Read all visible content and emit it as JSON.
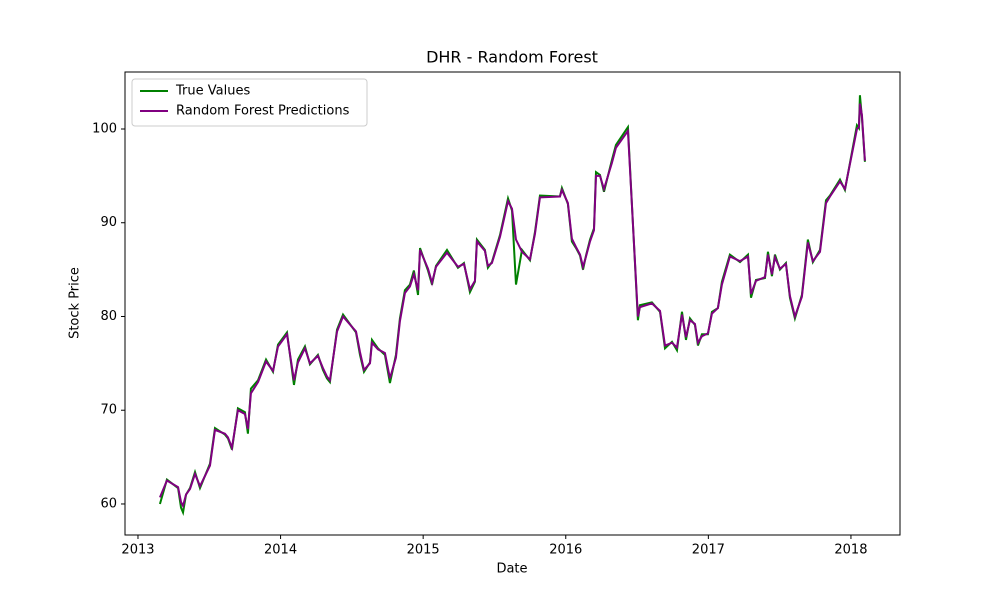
{
  "chart_data": {
    "type": "line",
    "title": "DHR - Random Forest",
    "x_label": "Date",
    "y_label": "Stock Price",
    "x": [
      2013.154,
      2013.203,
      2013.281,
      2013.302,
      2013.316,
      2013.337,
      2013.365,
      2013.4,
      2013.435,
      2013.505,
      2013.54,
      2013.61,
      2013.631,
      2013.659,
      2013.701,
      2013.75,
      2013.771,
      2013.792,
      2013.842,
      2013.898,
      2013.947,
      2013.982,
      2014.045,
      2014.094,
      2014.122,
      2014.171,
      2014.206,
      2014.262,
      2014.297,
      2014.325,
      2014.346,
      2014.396,
      2014.438,
      2014.529,
      2014.557,
      2014.585,
      2014.627,
      2014.641,
      2014.683,
      2014.732,
      2014.767,
      2014.809,
      2014.837,
      2014.872,
      2014.907,
      2014.935,
      2014.964,
      2014.978,
      2015.034,
      2015.062,
      2015.09,
      2015.167,
      2015.244,
      2015.286,
      2015.328,
      2015.363,
      2015.377,
      2015.433,
      2015.454,
      2015.482,
      2015.539,
      2015.595,
      2015.623,
      2015.651,
      2015.693,
      2015.749,
      2015.784,
      2015.819,
      2015.959,
      2015.973,
      2016.015,
      2016.043,
      2016.072,
      2016.1,
      2016.121,
      2016.142,
      2016.17,
      2016.198,
      2016.212,
      2016.24,
      2016.268,
      2016.324,
      2016.352,
      2016.436,
      2016.506,
      2016.52,
      2016.604,
      2016.661,
      2016.696,
      2016.745,
      2016.78,
      2016.815,
      2016.843,
      2016.871,
      2016.906,
      2016.927,
      2016.955,
      2016.997,
      2017.025,
      2017.067,
      2017.095,
      2017.151,
      2017.222,
      2017.278,
      2017.299,
      2017.334,
      2017.397,
      2017.418,
      2017.446,
      2017.467,
      2017.502,
      2017.544,
      2017.572,
      2017.607,
      2017.656,
      2017.698,
      2017.733,
      2017.783,
      2017.825,
      2017.853,
      2017.923,
      2017.958,
      2018.042,
      2018.056,
      2018.063,
      2018.077,
      2018.098
    ],
    "series": [
      {
        "name": "True Values",
        "color": "#008000",
        "values": [
          60.0,
          62.6,
          61.7,
          59.6,
          59.1,
          61.0,
          61.7,
          63.4,
          61.7,
          64.3,
          68.1,
          67.4,
          67.0,
          65.8,
          70.2,
          69.8,
          67.5,
          72.3,
          73.2,
          75.4,
          74.1,
          77.0,
          78.3,
          72.7,
          75.4,
          76.8,
          74.9,
          75.9,
          74.3,
          73.4,
          73.0,
          78.6,
          80.2,
          78.3,
          75.9,
          74.1,
          75.1,
          77.5,
          76.6,
          75.9,
          72.9,
          75.9,
          79.8,
          82.8,
          83.4,
          84.9,
          82.3,
          87.3,
          84.9,
          83.4,
          85.4,
          87.1,
          85.2,
          85.7,
          82.6,
          83.7,
          88.2,
          87.1,
          85.2,
          85.8,
          88.7,
          92.6,
          91.3,
          83.4,
          87.1,
          86.0,
          89.0,
          92.9,
          92.8,
          93.7,
          92.0,
          88.0,
          87.3,
          86.5,
          85.0,
          86.5,
          88.2,
          89.4,
          95.4,
          95.1,
          93.3,
          96.7,
          98.3,
          100.2,
          79.6,
          81.2,
          81.5,
          80.5,
          76.6,
          77.3,
          76.4,
          80.5,
          77.5,
          79.8,
          79.1,
          76.9,
          78.1,
          78.1,
          80.5,
          80.9,
          83.7,
          86.6,
          85.8,
          86.6,
          82.0,
          83.9,
          84.1,
          86.9,
          84.3,
          86.6,
          85.0,
          85.7,
          82.0,
          79.8,
          82.3,
          88.2,
          85.8,
          87.1,
          92.4,
          92.9,
          94.6,
          93.5,
          100.4,
          100.1,
          103.6,
          101.2,
          96.5
        ]
      },
      {
        "name": "Random Forest Predictions",
        "color": "#800080",
        "values": [
          60.7,
          62.5,
          61.8,
          60.2,
          59.8,
          61.0,
          61.6,
          63.2,
          61.9,
          64.1,
          67.9,
          67.5,
          67.1,
          66.0,
          70.0,
          69.6,
          68.0,
          71.8,
          73.0,
          75.2,
          74.2,
          76.8,
          78.1,
          73.2,
          75.1,
          76.6,
          75.0,
          75.8,
          74.5,
          73.6,
          73.2,
          78.4,
          80.0,
          78.4,
          76.2,
          74.3,
          75.0,
          77.2,
          76.5,
          76.1,
          73.4,
          75.6,
          79.5,
          82.5,
          83.2,
          84.5,
          82.8,
          87.1,
          85.1,
          83.6,
          85.3,
          86.8,
          85.3,
          85.6,
          82.9,
          83.8,
          88.0,
          87.0,
          85.4,
          85.7,
          88.5,
          92.3,
          91.5,
          88.2,
          86.9,
          86.1,
          88.8,
          92.7,
          92.8,
          93.5,
          92.1,
          88.3,
          87.4,
          86.6,
          85.3,
          86.4,
          88.0,
          89.2,
          95.0,
          95.0,
          93.6,
          96.4,
          98.0,
          99.8,
          80.0,
          81.0,
          81.4,
          80.6,
          76.9,
          77.2,
          76.7,
          80.2,
          77.8,
          79.6,
          79.2,
          77.2,
          77.9,
          78.2,
          80.3,
          80.9,
          83.4,
          86.4,
          85.9,
          86.4,
          82.4,
          83.8,
          84.2,
          86.6,
          84.5,
          86.3,
          85.1,
          85.6,
          82.2,
          80.0,
          82.1,
          87.9,
          85.9,
          86.9,
          92.1,
          92.8,
          94.4,
          93.6,
          100.0,
          100.2,
          102.7,
          101.5,
          96.6
        ]
      }
    ],
    "xlim": [
      2012.909,
      2018.344
    ],
    "xticks": [
      2013,
      2014,
      2015,
      2016,
      2017,
      2018
    ],
    "ylim": [
      56.69,
      106.08
    ],
    "yticks": [
      60,
      70,
      80,
      90,
      100
    ],
    "legend": "upper left"
  }
}
